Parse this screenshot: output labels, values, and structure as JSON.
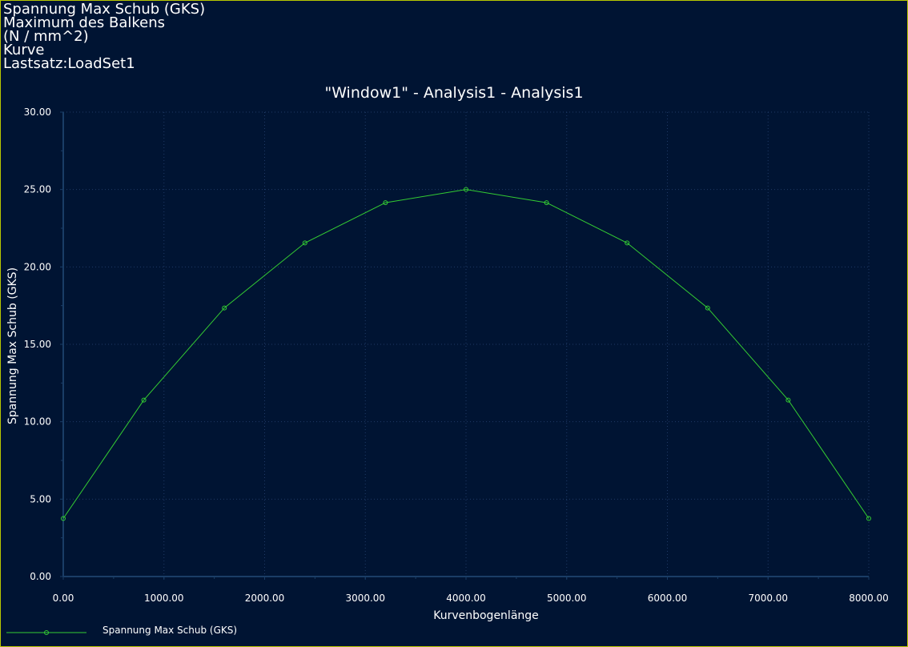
{
  "header": {
    "lines": [
      "Spannung Max Schub (GKS)",
      "Maximum des Balkens",
      "(N / mm^2)",
      "Kurve",
      "Lastsatz:LoadSet1"
    ]
  },
  "colors": {
    "background": "#001433",
    "series": "#33cc33",
    "grid": "#1f3a66",
    "axis": "#1a3d66",
    "frame": "#b8c800"
  },
  "chart_data": {
    "type": "line",
    "title": "\"Window1\" - Analysis1 - Analysis1",
    "xlabel": "Kurvenbogenlänge",
    "ylabel": "Spannung Max Schub (GKS)",
    "xlim": [
      0,
      8000
    ],
    "ylim": [
      0,
      30
    ],
    "x_ticks": [
      "0.00",
      "1000.00",
      "2000.00",
      "3000.00",
      "4000.00",
      "5000.00",
      "6000.00",
      "7000.00",
      "8000.00"
    ],
    "y_ticks": [
      "0.00",
      "5.00",
      "10.00",
      "15.00",
      "20.00",
      "25.00",
      "30.00"
    ],
    "grid": true,
    "legend_position": "bottom-left",
    "series": [
      {
        "name": "Spannung Max Schub (GKS)",
        "x": [
          0,
          800,
          1600,
          2400,
          3200,
          4000,
          4800,
          5600,
          6400,
          7200,
          8000
        ],
        "y": [
          3.75,
          11.4,
          17.35,
          21.55,
          24.15,
          25.0,
          24.15,
          21.55,
          17.35,
          11.4,
          3.75
        ]
      }
    ]
  }
}
